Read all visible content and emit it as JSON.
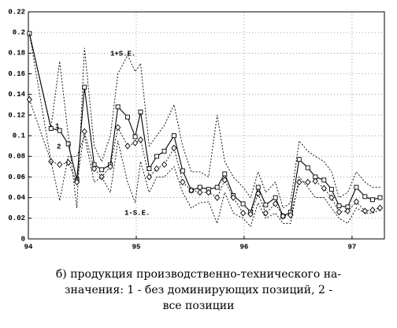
{
  "chart_data": {
    "type": "line",
    "x": [
      94.01,
      94.21,
      94.29,
      94.37,
      94.45,
      94.52,
      94.61,
      94.68,
      94.76,
      94.83,
      94.92,
      94.99,
      95.04,
      95.12,
      95.19,
      95.26,
      95.35,
      95.43,
      95.51,
      95.59,
      95.67,
      95.75,
      95.82,
      95.9,
      95.99,
      96.06,
      96.13,
      96.2,
      96.29,
      96.36,
      96.43,
      96.51,
      96.59,
      96.66,
      96.74,
      96.81,
      96.88,
      96.96,
      97.04,
      97.12,
      97.19,
      97.26
    ],
    "series": [
      {
        "name": "1",
        "color": "#000000",
        "marker": "square",
        "dash": false,
        "values": [
          0.199,
          0.107,
          0.105,
          0.092,
          0.057,
          0.147,
          0.072,
          0.067,
          0.072,
          0.128,
          0.118,
          0.099,
          0.123,
          0.068,
          0.08,
          0.085,
          0.1,
          0.066,
          0.047,
          0.05,
          0.048,
          0.05,
          0.063,
          0.042,
          0.034,
          0.026,
          0.05,
          0.033,
          0.04,
          0.022,
          0.026,
          0.077,
          0.069,
          0.06,
          0.057,
          0.048,
          0.032,
          0.031,
          0.05,
          0.041,
          0.038,
          0.04
        ]
      },
      {
        "name": "2",
        "color": "#000000",
        "marker": "diamond",
        "dash": true,
        "values": [
          0.135,
          0.075,
          0.072,
          0.074,
          0.055,
          0.104,
          0.068,
          0.06,
          0.07,
          0.108,
          0.09,
          0.093,
          0.096,
          0.06,
          0.068,
          0.072,
          0.088,
          0.055,
          0.047,
          0.045,
          0.045,
          0.04,
          0.057,
          0.04,
          0.025,
          0.024,
          0.044,
          0.025,
          0.034,
          0.022,
          0.023,
          0.055,
          0.055,
          0.056,
          0.049,
          0.04,
          0.026,
          0.027,
          0.036,
          0.027,
          0.028,
          0.03
        ]
      },
      {
        "name": "1+S.E.",
        "color": "#000000",
        "marker": "none",
        "dash": true,
        "values": [
          0.199,
          0.108,
          0.172,
          0.1,
          0.03,
          0.185,
          0.09,
          0.075,
          0.1,
          0.16,
          0.178,
          0.162,
          0.17,
          0.09,
          0.1,
          0.11,
          0.13,
          0.09,
          0.065,
          0.065,
          0.06,
          0.12,
          0.075,
          0.06,
          0.05,
          0.04,
          0.065,
          0.045,
          0.055,
          0.03,
          0.035,
          0.095,
          0.085,
          0.08,
          0.075,
          0.065,
          0.04,
          0.045,
          0.065,
          0.055,
          0.05,
          0.05
        ]
      },
      {
        "name": "1-S.E.",
        "color": "#000000",
        "marker": "none",
        "dash": true,
        "values": [
          0.199,
          0.075,
          0.037,
          0.08,
          0.08,
          0.1,
          0.055,
          0.06,
          0.045,
          0.095,
          0.055,
          0.035,
          0.075,
          0.045,
          0.06,
          0.06,
          0.07,
          0.045,
          0.03,
          0.035,
          0.036,
          0.015,
          0.045,
          0.025,
          0.02,
          0.012,
          0.035,
          0.02,
          0.025,
          0.015,
          0.015,
          0.06,
          0.05,
          0.04,
          0.04,
          0.03,
          0.02,
          0.015,
          0.03,
          0.025,
          0.025,
          0.028
        ]
      }
    ],
    "xlim": [
      94,
      97.3
    ],
    "xticks": [
      94,
      95,
      96,
      97
    ],
    "ylim": [
      0,
      0.22
    ],
    "yticks": [
      0,
      0.02,
      0.04,
      0.06,
      0.08,
      0.1,
      0.12,
      0.14,
      0.16,
      0.18,
      0.2,
      0.22
    ],
    "grid": true,
    "caption": [
      "б) продукция производственно-технического на-",
      "значения: 1 - без доминирующих позиций, 2 -",
      "все позиции"
    ]
  }
}
